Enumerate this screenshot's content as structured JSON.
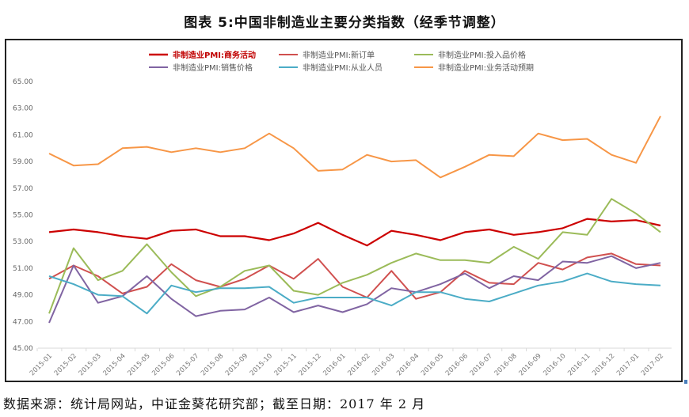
{
  "page": {
    "title": "图表 5:中国非制造业主要分类指数（经季节调整）",
    "source": "数据来源：统计局网站，中证金葵花研究部；截至日期：2017 年 2 月"
  },
  "chart_data": {
    "type": "line",
    "title": "图表 5:中国非制造业主要分类指数（经季节调整）",
    "xlabel": "",
    "ylabel": "",
    "ylim": [
      45,
      65
    ],
    "yticks": [
      "45.00",
      "47.00",
      "49.00",
      "51.00",
      "53.00",
      "55.00",
      "57.00",
      "59.00",
      "61.00",
      "63.00",
      "65.00"
    ],
    "ytick_values": [
      45,
      47,
      49,
      51,
      53,
      55,
      57,
      59,
      61,
      63,
      65
    ],
    "grid": false,
    "legend_position": "top",
    "x": [
      "2015-01",
      "2015-02",
      "2015-03",
      "2015-04",
      "2015-05",
      "2015-06",
      "2015-07",
      "2015-08",
      "2015-09",
      "2015-10",
      "2015-11",
      "2015-12",
      "2016-01",
      "2016-02",
      "2016-03",
      "2016-04",
      "2016-05",
      "2016-06",
      "2016-07",
      "2016-08",
      "2016-09",
      "2016-10",
      "2016-11",
      "2016-12",
      "2017-01",
      "2017-02"
    ],
    "series": [
      {
        "name": "非制造业PMI:商务活动",
        "color": "#cc0000",
        "bold": true,
        "values": [
          53.7,
          53.9,
          53.7,
          53.4,
          53.2,
          53.8,
          53.9,
          53.4,
          53.4,
          53.1,
          53.6,
          54.4,
          53.5,
          52.7,
          53.8,
          53.5,
          53.1,
          53.7,
          53.9,
          53.5,
          53.7,
          54.0,
          54.7,
          54.5,
          54.6,
          54.2
        ]
      },
      {
        "name": "非制造业PMI:新订单",
        "color": "#d0504f",
        "bold": false,
        "values": [
          50.2,
          51.2,
          50.4,
          49.1,
          49.6,
          51.3,
          50.1,
          49.6,
          50.2,
          51.2,
          50.2,
          51.7,
          49.6,
          48.8,
          50.8,
          48.7,
          49.2,
          50.8,
          49.9,
          49.8,
          51.4,
          50.9,
          51.8,
          52.1,
          51.3,
          51.2
        ]
      },
      {
        "name": "非制造业PMI:投入品价格",
        "color": "#9bbb59",
        "bold": false,
        "values": [
          47.6,
          52.5,
          50.1,
          50.8,
          52.8,
          50.7,
          48.9,
          49.6,
          50.8,
          51.2,
          49.3,
          49.0,
          49.9,
          50.5,
          51.4,
          52.1,
          51.6,
          51.6,
          51.4,
          52.6,
          51.7,
          53.7,
          53.5,
          56.2,
          55.1,
          53.7
        ]
      },
      {
        "name": "非制造业PMI:销售价格",
        "color": "#8064a2",
        "bold": false,
        "values": [
          46.9,
          51.2,
          48.4,
          48.9,
          50.4,
          48.7,
          47.4,
          47.8,
          47.9,
          48.8,
          47.7,
          48.2,
          47.7,
          48.3,
          49.5,
          49.2,
          49.8,
          50.6,
          49.5,
          50.4,
          50.1,
          51.5,
          51.4,
          51.9,
          51.0,
          51.4
        ]
      },
      {
        "name": "非制造业PMI:从业人员",
        "color": "#4bacc6",
        "bold": false,
        "values": [
          50.4,
          49.8,
          49.0,
          48.9,
          47.6,
          49.7,
          49.2,
          49.5,
          49.5,
          49.6,
          48.4,
          48.8,
          48.8,
          48.8,
          48.2,
          49.2,
          49.2,
          48.7,
          48.5,
          49.1,
          49.7,
          50.0,
          50.6,
          50.0,
          49.8,
          49.7
        ]
      },
      {
        "name": "非制造业PMI:业务活动预期",
        "color": "#f79646",
        "bold": false,
        "values": [
          59.6,
          58.7,
          58.8,
          60.0,
          60.1,
          59.7,
          60.0,
          59.7,
          60.0,
          61.1,
          60.0,
          58.3,
          58.4,
          59.5,
          59.0,
          59.1,
          57.8,
          58.6,
          59.5,
          59.4,
          61.1,
          60.6,
          60.7,
          59.5,
          58.9,
          62.4
        ]
      }
    ]
  }
}
